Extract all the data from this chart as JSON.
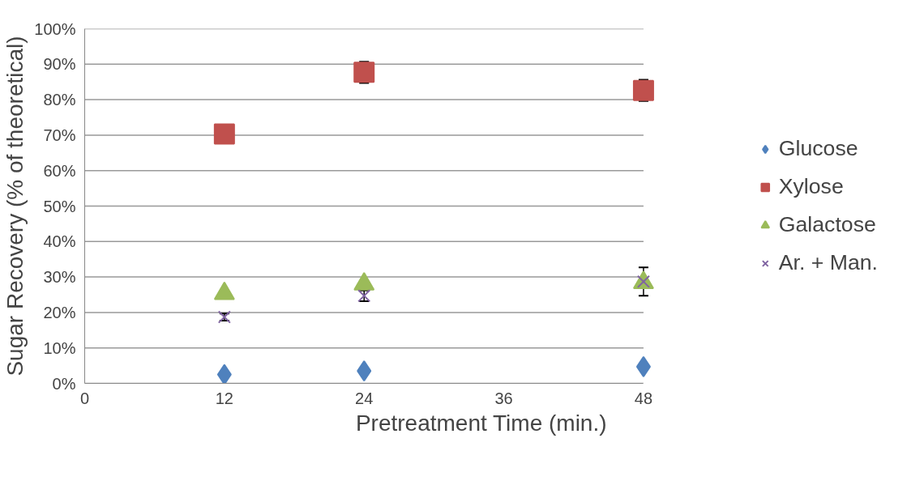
{
  "chart_data": {
    "type": "scatter",
    "xlabel": "Pretreatment Time (min.)",
    "ylabel": "Sugar Recovery (% of theoretical)",
    "x": [
      12,
      24,
      48
    ],
    "series": [
      {
        "name": "Glucose",
        "color": "#4f81bd",
        "marker": "diamond",
        "values": [
          2.5,
          3.5,
          4.7
        ],
        "errors": [
          null,
          null,
          null
        ]
      },
      {
        "name": "Xylose",
        "color": "#c0504d",
        "marker": "square",
        "values": [
          70.3,
          87.7,
          82.6
        ],
        "errors": [
          null,
          3,
          3
        ]
      },
      {
        "name": "Galactose",
        "color": "#9bbb59",
        "marker": "triangle",
        "values": [
          25.3,
          28,
          28.4
        ]
      },
      {
        "name": "Ar. + Man.",
        "color": "#8064a2",
        "marker": "cross",
        "values": [
          18.7,
          24.7,
          28.7
        ],
        "errors": [
          1,
          1.5,
          4
        ]
      }
    ],
    "xlim": [
      0,
      48
    ],
    "xticks": [
      0,
      12,
      24,
      36,
      48
    ],
    "ylim": [
      0,
      100
    ],
    "yticks": [
      {
        "value": 0,
        "label": "0%"
      },
      {
        "value": 10,
        "label": "10%"
      },
      {
        "value": 20,
        "label": "20%"
      },
      {
        "value": 30,
        "label": "30%"
      },
      {
        "value": 40,
        "label": "40%"
      },
      {
        "value": 50,
        "label": "50%"
      },
      {
        "value": 60,
        "label": "60%"
      },
      {
        "value": 70,
        "label": "70%"
      },
      {
        "value": 80,
        "label": "80%"
      },
      {
        "value": 90,
        "label": "90%"
      },
      {
        "value": 100,
        "label": "100%"
      }
    ],
    "grid": "y",
    "legend": "right"
  }
}
